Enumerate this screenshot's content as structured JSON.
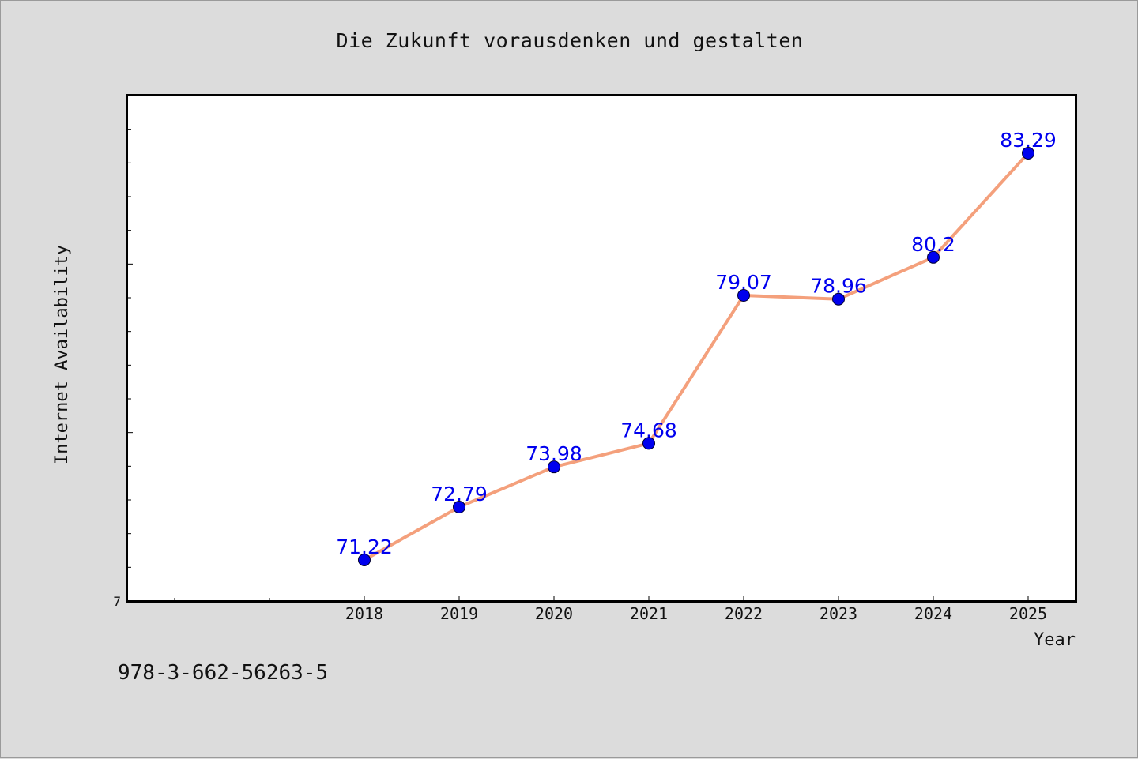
{
  "chart_data": {
    "type": "line",
    "title": "Die Zukunft vorausdenken und gestalten",
    "xlabel": "Year",
    "ylabel": "Internet Availability",
    "y_tick_labels": [
      "7"
    ],
    "categories": [
      "2018",
      "2019",
      "2020",
      "2021",
      "2022",
      "2023",
      "2024",
      "2025"
    ],
    "series": [
      {
        "values": [
          71.22,
          72.79,
          73.98,
          74.68,
          79.07,
          78.96,
          80.2,
          83.29
        ],
        "data_labels": [
          "71.22",
          "72.79",
          "73.98",
          "74.68",
          "79.07",
          "78.96",
          "80.2",
          "83.29"
        ]
      }
    ],
    "ylim": [
      70.0,
      85.0
    ],
    "grid": false,
    "line_color": "#f4a07c",
    "marker_color": "#0000ee",
    "label_color": "#0000ee"
  },
  "footer_code": "978-3-662-56263-5"
}
